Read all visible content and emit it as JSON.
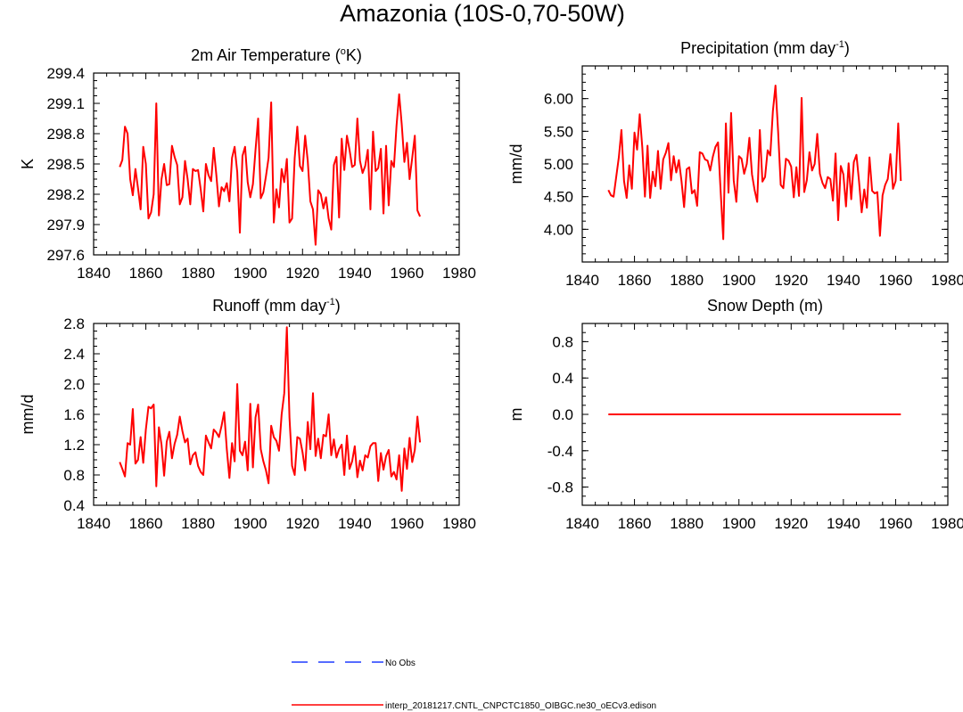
{
  "title": "Amazonia (10S-0,70-50W)",
  "colors": {
    "model": "#ff0000",
    "obs": "#1f3cff",
    "axis": "#000000"
  },
  "legend": [
    {
      "label": "No Obs",
      "style": "dashed",
      "color": "#1f3cff"
    },
    {
      "label": "interp_20181217.CNTL_CNPCTC1850_OIBGC.ne30_oECv3.edison",
      "style": "solid",
      "color": "#ff0000"
    }
  ],
  "chart_data": [
    {
      "type": "line",
      "title": "2m Air Temperature (°K)",
      "title_main": "2m Air Temperature (",
      "title_sup": "o",
      "title_tail": "K)",
      "ylabel": "K",
      "xlim": [
        1840,
        1980
      ],
      "ylim": [
        297.6,
        299.4
      ],
      "xticks": [
        "1840",
        "1860",
        "1880",
        "1900",
        "1920",
        "1940",
        "1960",
        "1980"
      ],
      "yticks": [
        "297.6",
        "297.9",
        "298.2",
        "298.5",
        "298.8",
        "299.1",
        "299.4"
      ],
      "x_start": 1850,
      "series": [
        {
          "name": "model",
          "values": [
            298.47,
            298.54,
            298.87,
            298.8,
            298.35,
            298.19,
            298.45,
            298.26,
            298.05,
            298.67,
            298.5,
            297.96,
            298.02,
            298.2,
            299.1,
            297.99,
            298.35,
            298.5,
            298.29,
            298.3,
            298.68,
            298.57,
            298.49,
            298.1,
            298.17,
            298.53,
            298.35,
            298.1,
            298.45,
            298.43,
            298.44,
            298.25,
            298.03,
            298.5,
            298.39,
            298.33,
            298.66,
            298.39,
            298.08,
            298.27,
            298.23,
            298.31,
            298.13,
            298.56,
            298.67,
            298.42,
            297.82,
            298.58,
            298.67,
            298.32,
            298.17,
            298.3,
            298.64,
            298.95,
            298.16,
            298.22,
            298.38,
            298.56,
            299.11,
            297.92,
            298.25,
            298.07,
            298.45,
            298.32,
            298.55,
            297.92,
            297.96,
            298.56,
            298.87,
            298.48,
            298.43,
            298.78,
            298.53,
            298.13,
            298.05,
            297.7,
            298.24,
            298.2,
            298.06,
            298.17,
            297.96,
            297.85,
            298.49,
            298.57,
            297.97,
            298.75,
            298.44,
            298.78,
            298.64,
            298.47,
            298.49,
            298.95,
            298.53,
            298.41,
            298.48,
            298.64,
            298.05,
            298.82,
            298.43,
            298.46,
            298.65,
            298.01,
            298.68,
            298.09,
            298.53,
            298.47,
            298.88,
            299.19,
            298.89,
            298.52,
            298.71,
            298.35,
            298.56,
            298.78,
            298.04,
            297.98
          ]
        }
      ]
    },
    {
      "type": "line",
      "title": "Precipitation (mm day-1)",
      "title_main": "Precipitation (mm day",
      "title_sup": "-1",
      "title_tail": ")",
      "ylabel": "mm/d",
      "xlim": [
        1840,
        1980
      ],
      "ylim": [
        3.5,
        6.5
      ],
      "xticks": [
        "1840",
        "1860",
        "1880",
        "1900",
        "1920",
        "1940",
        "1960",
        "1980"
      ],
      "yticks": [
        "4.00",
        "4.50",
        "5.00",
        "5.50",
        "6.00"
      ],
      "yticks_values": [
        4.0,
        4.5,
        5.0,
        5.5,
        6.0
      ],
      "x_start": 1850,
      "series": [
        {
          "name": "model",
          "values": [
            4.6,
            4.52,
            4.5,
            4.8,
            5.1,
            5.52,
            4.74,
            4.48,
            4.98,
            4.62,
            5.48,
            5.22,
            5.76,
            5.25,
            4.5,
            5.28,
            4.48,
            4.88,
            4.66,
            5.2,
            4.62,
            5.07,
            5.17,
            5.32,
            4.75,
            5.12,
            4.87,
            5.06,
            4.74,
            4.34,
            4.92,
            4.95,
            4.55,
            4.6,
            4.36,
            5.18,
            5.16,
            5.07,
            5.05,
            4.9,
            5.11,
            5.26,
            5.33,
            4.58,
            3.85,
            5.62,
            4.56,
            5.78,
            4.75,
            4.42,
            5.12,
            5.08,
            4.85,
            5.0,
            5.4,
            4.84,
            4.6,
            4.42,
            5.52,
            4.73,
            4.8,
            5.21,
            5.13,
            5.81,
            6.2,
            5.5,
            4.68,
            4.63,
            5.08,
            5.05,
            4.96,
            4.49,
            4.95,
            4.51,
            6.01,
            4.57,
            4.75,
            5.18,
            4.9,
            5.0,
            5.46,
            4.85,
            4.71,
            4.63,
            4.8,
            4.77,
            4.44,
            5.16,
            4.14,
            4.97,
            4.84,
            4.35,
            5.01,
            4.46,
            5.03,
            5.14,
            4.73,
            4.26,
            4.61,
            4.33,
            5.1,
            4.59,
            4.55,
            4.57,
            3.9,
            4.52,
            4.68,
            4.77,
            5.15,
            4.62,
            4.74,
            5.62,
            4.74
          ]
        }
      ]
    },
    {
      "type": "line",
      "title": "Runoff (mm day-1)",
      "title_main": "Runoff (mm day",
      "title_sup": "-1",
      "title_tail": ")",
      "ylabel": "mm/d",
      "xlim": [
        1840,
        1980
      ],
      "ylim": [
        0.4,
        2.8
      ],
      "xticks": [
        "1840",
        "1860",
        "1880",
        "1900",
        "1920",
        "1940",
        "1960",
        "1980"
      ],
      "yticks": [
        "0.4",
        "0.8",
        "1.2",
        "1.6",
        "2.0",
        "2.4",
        "2.8"
      ],
      "x_start": 1850,
      "series": [
        {
          "name": "model",
          "values": [
            0.97,
            0.88,
            0.78,
            1.22,
            1.2,
            1.67,
            0.95,
            1.0,
            1.3,
            0.96,
            1.4,
            1.7,
            1.68,
            1.73,
            0.65,
            1.43,
            1.2,
            0.79,
            1.24,
            1.37,
            1.02,
            1.21,
            1.33,
            1.57,
            1.38,
            1.23,
            1.28,
            0.94,
            1.06,
            1.1,
            0.92,
            0.84,
            0.8,
            1.32,
            1.23,
            1.15,
            1.4,
            1.36,
            1.3,
            1.45,
            1.63,
            1.14,
            0.76,
            1.22,
            0.98,
            2.0,
            1.12,
            1.06,
            1.24,
            0.86,
            1.74,
            0.9,
            1.56,
            1.73,
            1.14,
            0.98,
            0.86,
            0.69,
            1.45,
            1.3,
            1.25,
            1.12,
            1.6,
            1.88,
            2.75,
            1.56,
            0.92,
            0.8,
            1.3,
            1.28,
            1.1,
            0.86,
            1.5,
            1.14,
            1.88,
            1.05,
            1.28,
            1.02,
            1.33,
            1.31,
            1.6,
            1.06,
            1.27,
            1.03,
            1.14,
            1.2,
            0.8,
            1.32,
            0.88,
            0.98,
            1.18,
            0.77,
            0.99,
            0.86,
            1.06,
            1.03,
            1.18,
            1.22,
            1.22,
            0.72,
            1.09,
            0.87,
            1.05,
            1.13,
            0.78,
            0.84,
            0.74,
            1.06,
            0.59,
            1.15,
            0.88,
            1.29,
            0.97,
            1.13,
            1.57,
            1.23
          ]
        }
      ]
    },
    {
      "type": "line",
      "title": "Snow Depth (m)",
      "title_main": "Snow Depth (m)",
      "title_sup": "",
      "title_tail": "",
      "ylabel": "m",
      "xlim": [
        1840,
        1980
      ],
      "ylim": [
        -1.0,
        1.0
      ],
      "xticks": [
        "1840",
        "1860",
        "1880",
        "1900",
        "1920",
        "1940",
        "1960",
        "1980"
      ],
      "yticks": [
        "-0.8",
        "-0.4",
        "0.0",
        "0.4",
        "0.8"
      ],
      "yticks_values": [
        -0.8,
        -0.4,
        0.0,
        0.4,
        0.8
      ],
      "x_start": 1850,
      "series": [
        {
          "name": "model",
          "values": [
            0,
            0,
            0,
            0,
            0,
            0,
            0,
            0,
            0,
            0,
            0,
            0,
            0,
            0,
            0,
            0,
            0,
            0,
            0,
            0,
            0,
            0,
            0,
            0,
            0,
            0,
            0,
            0,
            0,
            0,
            0,
            0,
            0,
            0,
            0,
            0,
            0,
            0,
            0,
            0,
            0,
            0,
            0,
            0,
            0,
            0,
            0,
            0,
            0,
            0,
            0,
            0,
            0,
            0,
            0,
            0,
            0,
            0,
            0,
            0,
            0,
            0,
            0,
            0,
            0,
            0,
            0,
            0,
            0,
            0,
            0,
            0,
            0,
            0,
            0,
            0,
            0,
            0,
            0,
            0,
            0,
            0,
            0,
            0,
            0,
            0,
            0,
            0,
            0,
            0,
            0,
            0,
            0,
            0,
            0,
            0,
            0,
            0,
            0,
            0,
            0,
            0,
            0,
            0,
            0,
            0,
            0,
            0,
            0,
            0,
            0,
            0,
            0
          ]
        }
      ]
    }
  ]
}
